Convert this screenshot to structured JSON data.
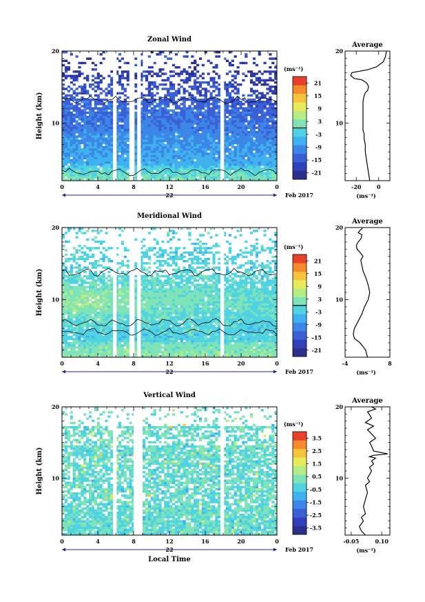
{
  "chart_data": [
    {
      "type": "heatmap",
      "title": "Zonal Wind",
      "ylabel": "Height (km)",
      "ylim": [
        2,
        20
      ],
      "yticks": [
        10,
        20
      ],
      "xlim": [
        0,
        24
      ],
      "xticks": [
        "0",
        "4",
        "8",
        "12",
        "16",
        "20",
        "0"
      ],
      "date_label": "22",
      "month_label": "Feb 2017",
      "colorbar": {
        "unit": "(ms⁻¹)",
        "ticks": [
          "21",
          "15",
          "9",
          "3",
          "-3",
          "-9",
          "-15",
          "-21"
        ],
        "range": [
          -24,
          24
        ],
        "contour_at": 0
      },
      "data_gaps_hours": [
        [
          5.7,
          6.1
        ],
        [
          7.6,
          8.0
        ],
        [
          8.4,
          8.8
        ],
        [
          17.7,
          18.1
        ]
      ],
      "profile": {
        "title": "Average",
        "xlabel": "(ms⁻¹)",
        "xticks": [
          "-20",
          "0"
        ],
        "xlim": [
          -30,
          10
        ],
        "yticks": [
          10,
          20
        ],
        "x": [
          -8,
          -9,
          -10,
          -11,
          -12,
          -12,
          -13,
          -13,
          -14,
          -14,
          -14,
          -14,
          -14,
          -13,
          -12,
          -10,
          -9,
          -10,
          -12,
          -15,
          -22,
          -25,
          -24,
          -10,
          -2,
          4,
          6,
          7
        ],
        "y": [
          2,
          3,
          4,
          5,
          6,
          7,
          7.8,
          8.5,
          9,
          10,
          11,
          12,
          13,
          13.8,
          14.2,
          14.5,
          15,
          15.4,
          15.7,
          16,
          16.2,
          16.6,
          17,
          17.4,
          17.8,
          18.5,
          19.2,
          20
        ]
      }
    },
    {
      "type": "heatmap",
      "title": "Meridional Wind",
      "ylabel": "Height (km)",
      "ylim": [
        2,
        20
      ],
      "yticks": [
        10,
        20
      ],
      "xlim": [
        0,
        24
      ],
      "xticks": [
        "0",
        "4",
        "8",
        "12",
        "16",
        "20",
        "0"
      ],
      "date_label": "22",
      "month_label": "Feb 2017",
      "colorbar": {
        "unit": "(ms⁻¹)",
        "ticks": [
          "21",
          "15",
          "9",
          "3",
          "-3",
          "-9",
          "-15",
          "-21"
        ],
        "range": [
          -24,
          24
        ],
        "contour_at": 0
      },
      "data_gaps_hours": [
        [
          5.7,
          6.1
        ],
        [
          7.6,
          8.0
        ],
        [
          8.4,
          8.8
        ],
        [
          17.7,
          18.1
        ]
      ],
      "profile": {
        "title": "Average",
        "xlabel": "(ms⁻¹)",
        "xticks": [
          "-4",
          "8"
        ],
        "xlim": [
          -4,
          8
        ],
        "yticks": [
          10,
          20
        ],
        "x": [
          2,
          1.5,
          0,
          -1.5,
          -1.8,
          -1.5,
          -0.5,
          0.5,
          1.2,
          2.2,
          2.6,
          2.2,
          1.6,
          0.8,
          0.4,
          0.2,
          0.8,
          0.1,
          -0.8,
          -1,
          -0.5,
          0.3,
          0.5,
          -0.5,
          0,
          0.8
        ],
        "y": [
          2,
          3,
          4,
          4.6,
          5.2,
          6,
          7,
          8,
          9,
          10,
          11,
          12,
          13,
          14,
          15,
          15.5,
          16,
          16.5,
          17,
          17.5,
          18,
          18.5,
          19,
          19.3,
          19.6,
          20
        ]
      }
    },
    {
      "type": "heatmap",
      "title": "Vertical Wind",
      "ylabel": "Height (km)",
      "xlabel": "Local Time",
      "ylim": [
        2,
        20
      ],
      "yticks": [
        10,
        20
      ],
      "xlim": [
        0,
        24
      ],
      "xticks": [
        "0",
        "4",
        "8",
        "12",
        "16",
        "20",
        "0"
      ],
      "date_label": "22",
      "month_label": "Feb 2017",
      "colorbar": {
        "unit": "(ms⁻¹)",
        "ticks": [
          "3.5",
          "2.5",
          "1.5",
          "0.5",
          "-0.5",
          "-1.5",
          "-2.5",
          "-3.5"
        ],
        "range": [
          -4,
          4
        ]
      },
      "data_gaps_hours": [
        [
          5.7,
          6.1
        ],
        [
          8.0,
          8.3
        ],
        [
          8.5,
          8.9
        ],
        [
          17.7,
          18.1
        ]
      ],
      "profile": {
        "title": "Average",
        "xlabel": "(ms⁻¹)",
        "xticks": [
          "-0.05",
          "0.10"
        ],
        "xlim": [
          -0.08,
          0.14
        ],
        "yticks": [
          10,
          20
        ],
        "x": [
          0.02,
          0.0,
          -0.01,
          0.01,
          0.0,
          0.02,
          0.01,
          0.02,
          0.03,
          0.02,
          0.04,
          0.03,
          0.04,
          0.05,
          0.04,
          0.06,
          0.05,
          0.07,
          0.04,
          0.06,
          0.13,
          0.06,
          0.05,
          0.04,
          0.07,
          0.05,
          0.03,
          0.06,
          0.02,
          0.05,
          0.04,
          0.03,
          0.07,
          0.05
        ],
        "y": [
          2,
          2.6,
          3.2,
          4,
          4.5,
          5,
          6,
          7,
          8,
          9,
          9.5,
          10,
          10.5,
          11,
          11.5,
          12,
          12.4,
          12.8,
          13,
          13.2,
          13.4,
          13.8,
          14.5,
          15,
          15.6,
          16.2,
          16.8,
          17.3,
          17.8,
          18.4,
          18.9,
          19.3,
          19.7,
          20
        ]
      }
    }
  ]
}
